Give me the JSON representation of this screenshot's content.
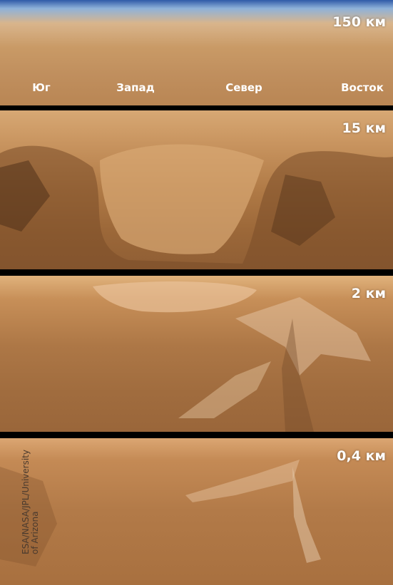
{
  "panels": [
    {
      "altitude": "150 км",
      "directions": [
        "Юг",
        "Запад",
        "Север",
        "Восток"
      ]
    },
    {
      "altitude": "15 км"
    },
    {
      "altitude": "2 км"
    },
    {
      "altitude": "0,4 км"
    }
  ],
  "credit": [
    "ESA/NASA/JPL/University",
    "of Arizona"
  ]
}
